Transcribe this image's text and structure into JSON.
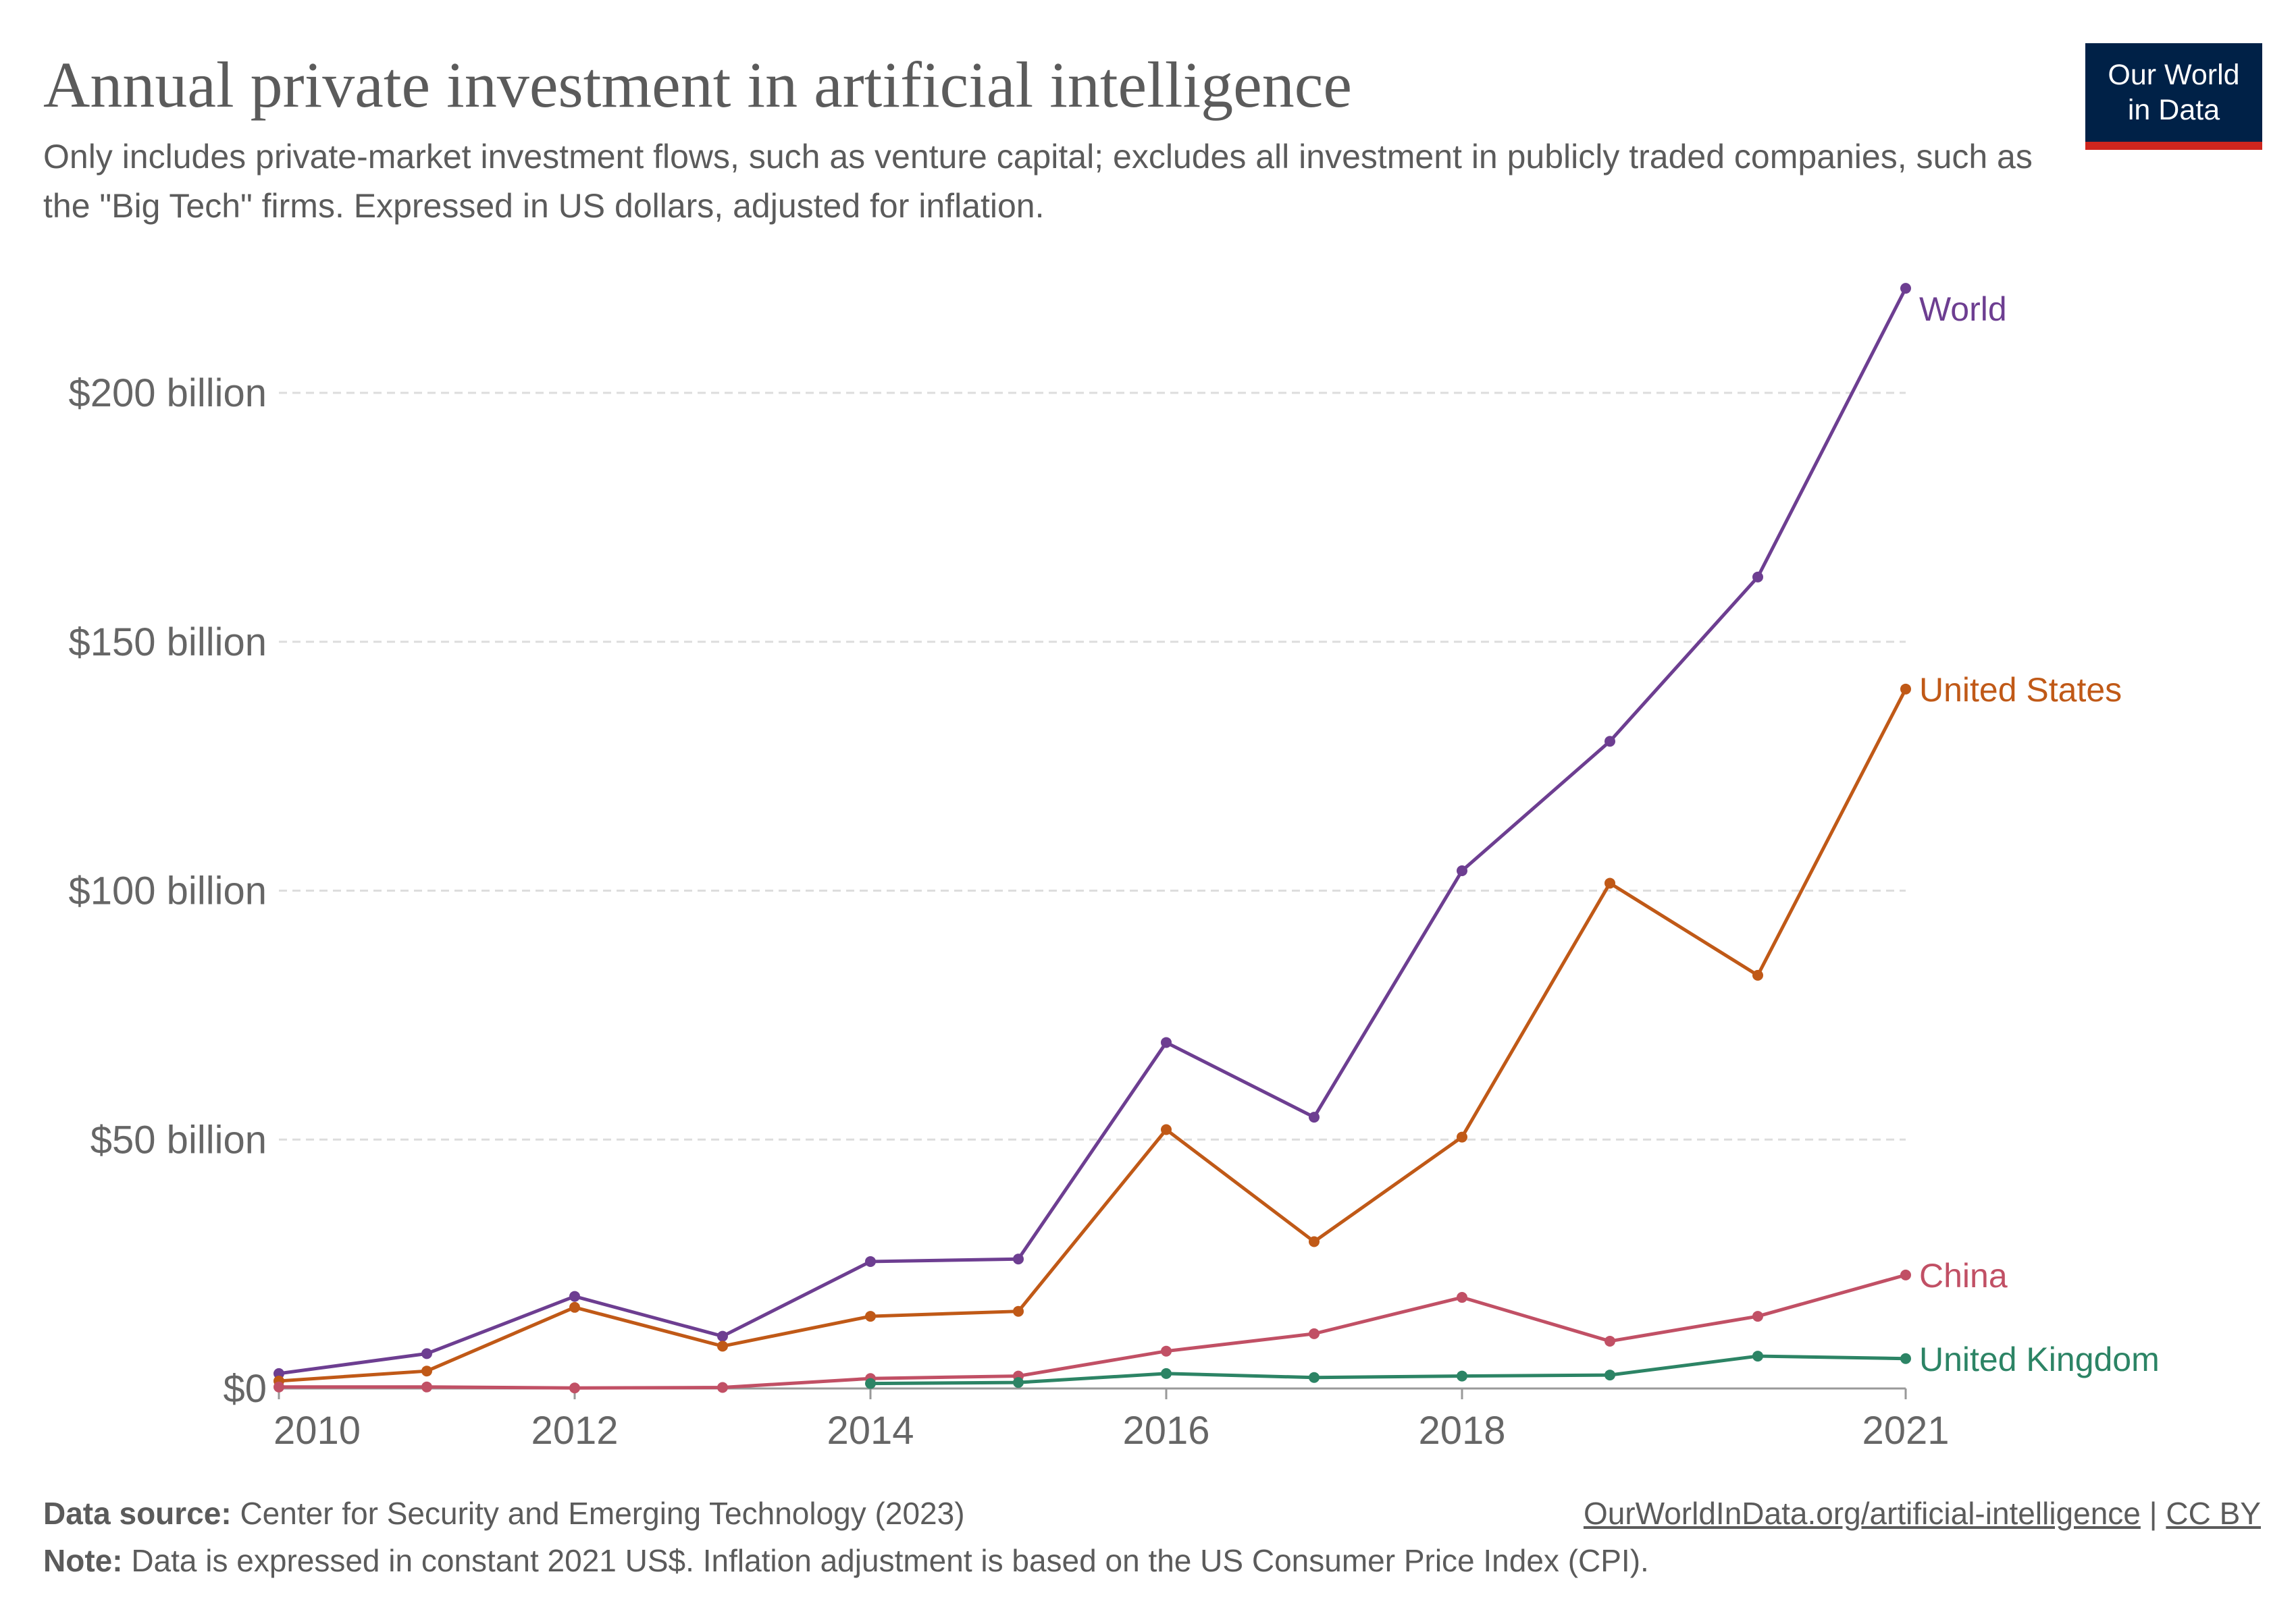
{
  "header": {
    "title": "Annual private investment in artificial intelligence",
    "subtitle": "Only includes private-market investment flows, such as venture capital; excludes all investment in publicly traded companies, such as the \"Big Tech\" firms. Expressed in US dollars, adjusted for inflation."
  },
  "logo": {
    "line1": "Our World",
    "line2": "in Data",
    "bg_color": "#002147",
    "accent_color": "#ce261e"
  },
  "footer": {
    "source_label": "Data source:",
    "source_text": "Center for Security and Emerging Technology (2023)",
    "note_label": "Note:",
    "note_text": "Data is expressed in constant 2021 US$. Inflation adjustment is based on the US Consumer Price Index (CPI).",
    "link_text": "OurWorldInData.org/artificial-intelligence",
    "separator": "|",
    "license_text": "CC BY"
  },
  "chart_data": {
    "type": "line",
    "title": "Annual private investment in artificial intelligence",
    "x": [
      2010,
      2011,
      2012,
      2013,
      2014,
      2015,
      2016,
      2017,
      2018,
      2019,
      2020,
      2021
    ],
    "xlim": [
      2010,
      2021
    ],
    "ylim": [
      0,
      220
    ],
    "y_unit": "billion US$",
    "y_ticks": [
      0,
      50,
      100,
      150,
      200
    ],
    "y_tick_labels": [
      "$0",
      "$50 billion",
      "$100 billion",
      "$150 billion",
      "$200 billion"
    ],
    "x_ticks": [
      2010,
      2012,
      2014,
      2016,
      2018,
      2021
    ],
    "x_tick_labels": [
      "2010",
      "2012",
      "2014",
      "2016",
      "2018",
      "2021"
    ],
    "grid": "horizontal dashed",
    "legend": "inline labels at line ends",
    "series": [
      {
        "name": "World",
        "color": "#6d3e91",
        "values": [
          3,
          7,
          18.5,
          10.5,
          25.5,
          26,
          69.5,
          54.5,
          104,
          130,
          163,
          221
        ]
      },
      {
        "name": "United States",
        "color": "#c05917",
        "values": [
          1.5,
          3.5,
          16.3,
          8.5,
          14.5,
          15.5,
          52,
          29.5,
          50.5,
          101.5,
          83,
          140.5
        ]
      },
      {
        "name": "China",
        "color": "#c15065",
        "values": [
          0.3,
          0.3,
          0.1,
          0.2,
          2,
          2.5,
          7.5,
          11,
          18.3,
          9.5,
          14.5,
          22.8
        ]
      },
      {
        "name": "United Kingdom",
        "color": "#2c8465",
        "values": [
          null,
          null,
          null,
          null,
          1,
          1.2,
          3,
          2.2,
          2.5,
          2.7,
          6.5,
          6
        ]
      }
    ]
  }
}
